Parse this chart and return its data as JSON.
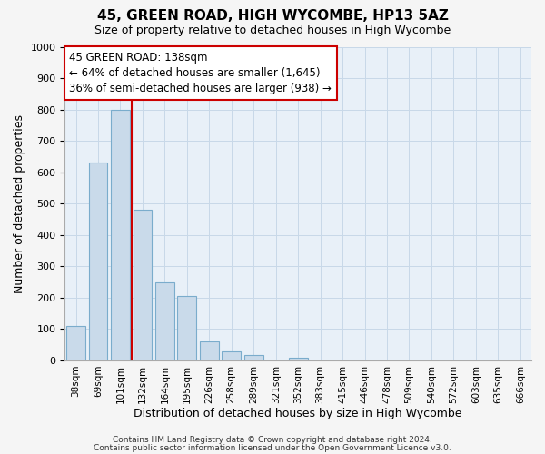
{
  "title": "45, GREEN ROAD, HIGH WYCOMBE, HP13 5AZ",
  "subtitle": "Size of property relative to detached houses in High Wycombe",
  "xlabel": "Distribution of detached houses by size in High Wycombe",
  "ylabel": "Number of detached properties",
  "bin_labels": [
    "38sqm",
    "69sqm",
    "101sqm",
    "132sqm",
    "164sqm",
    "195sqm",
    "226sqm",
    "258sqm",
    "289sqm",
    "321sqm",
    "352sqm",
    "383sqm",
    "415sqm",
    "446sqm",
    "478sqm",
    "509sqm",
    "540sqm",
    "572sqm",
    "603sqm",
    "635sqm",
    "666sqm"
  ],
  "bar_values": [
    110,
    630,
    800,
    480,
    250,
    205,
    60,
    28,
    18,
    0,
    8,
    0,
    0,
    0,
    0,
    0,
    0,
    0,
    0,
    0,
    0
  ],
  "bar_color": "#c9daea",
  "bar_edge_color": "#7aaccc",
  "vline_color": "#cc0000",
  "vline_index": 2.5,
  "ylim": [
    0,
    1000
  ],
  "yticks": [
    0,
    100,
    200,
    300,
    400,
    500,
    600,
    700,
    800,
    900,
    1000
  ],
  "annotation_title": "45 GREEN ROAD: 138sqm",
  "annotation_line1": "← 64% of detached houses are smaller (1,645)",
  "annotation_line2": "36% of semi-detached houses are larger (938) →",
  "footer_line1": "Contains HM Land Registry data © Crown copyright and database right 2024.",
  "footer_line2": "Contains public sector information licensed under the Open Government Licence v3.0.",
  "fig_background": "#f5f5f5",
  "plot_background": "#e8f0f8",
  "grid_color": "#c8d8e8",
  "ann_box_color": "#ffffff",
  "ann_border_color": "#cc0000"
}
